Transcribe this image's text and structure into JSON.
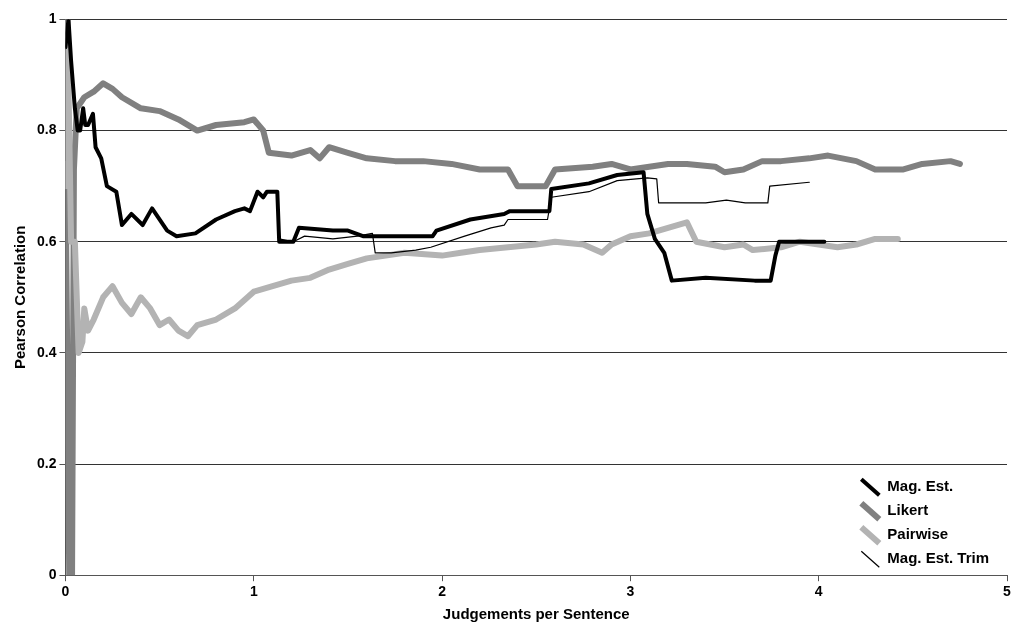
{
  "chart_data": {
    "type": "line",
    "xlabel": "Judgements per Sentence",
    "ylabel": "Pearson Correlation",
    "xlim": [
      0,
      5
    ],
    "xticks": [
      0,
      1,
      2,
      3,
      4,
      5
    ],
    "ylim": [
      0,
      1
    ],
    "yticks": [
      0,
      0.2,
      0.4,
      0.6,
      0.8,
      1
    ],
    "grid": "y",
    "legend": "bottom right",
    "marker": "none",
    "line_style": "solid",
    "series": [
      {
        "name": "Mag. Est.",
        "color": "#000000",
        "x": [
          0,
          0.016,
          0.03,
          0.05,
          0.065,
          0.078,
          0.094,
          0.105,
          0.12,
          0.146,
          0.16,
          0.19,
          0.22,
          0.27,
          0.3,
          0.35,
          0.41,
          0.46,
          0.54,
          0.59,
          0.69,
          0.8,
          0.9,
          0.95,
          0.98,
          1.02,
          1.05,
          1.07,
          1.125,
          1.135,
          1.21,
          1.24,
          1.42,
          1.5,
          1.58,
          1.84,
          1.95,
          1.97,
          2.15,
          2.33,
          2.36,
          2.57,
          2.58,
          2.78,
          2.93,
          3.07,
          3.09,
          3.13,
          3.18,
          3.22,
          3.4,
          3.66,
          3.745,
          3.77,
          3.79,
          4.03
        ],
        "values": [
          0.95,
          1.0,
          0.925,
          0.84,
          0.8,
          0.8,
          0.84,
          0.81,
          0.81,
          0.83,
          0.77,
          0.75,
          0.7,
          0.69,
          0.63,
          0.65,
          0.63,
          0.66,
          0.62,
          0.61,
          0.615,
          0.64,
          0.655,
          0.66,
          0.655,
          0.69,
          0.68,
          0.69,
          0.69,
          0.6,
          0.6,
          0.625,
          0.62,
          0.62,
          0.61,
          0.61,
          0.61,
          0.62,
          0.64,
          0.65,
          0.655,
          0.655,
          0.695,
          0.705,
          0.72,
          0.725,
          0.65,
          0.605,
          0.58,
          0.53,
          0.535,
          0.53,
          0.53,
          0.575,
          0.6,
          0.6
        ]
      },
      {
        "name": "Likert",
        "color": "#808080",
        "x": [
          0,
          0.02,
          0.035,
          0.045,
          0.06,
          0.1,
          0.15,
          0.2,
          0.25,
          0.3,
          0.4,
          0.5,
          0.6,
          0.7,
          0.8,
          0.95,
          1.0,
          1.05,
          1.08,
          1.2,
          1.3,
          1.35,
          1.4,
          1.5,
          1.6,
          1.75,
          1.9,
          2.05,
          2.2,
          2.35,
          2.4,
          2.55,
          2.6,
          2.8,
          2.9,
          3.0,
          3.1,
          3.2,
          3.3,
          3.45,
          3.5,
          3.6,
          3.7,
          3.8,
          3.95,
          4.05,
          4.2,
          4.3,
          4.45,
          4.55,
          4.7,
          4.75
        ],
        "values": [
          0.74,
          0,
          0,
          0.73,
          0.84,
          0.86,
          0.87,
          0.885,
          0.875,
          0.86,
          0.84,
          0.835,
          0.82,
          0.8,
          0.81,
          0.815,
          0.82,
          0.8,
          0.76,
          0.755,
          0.765,
          0.75,
          0.77,
          0.76,
          0.75,
          0.745,
          0.745,
          0.74,
          0.73,
          0.73,
          0.7,
          0.7,
          0.73,
          0.735,
          0.74,
          0.73,
          0.735,
          0.74,
          0.74,
          0.735,
          0.725,
          0.73,
          0.745,
          0.745,
          0.75,
          0.755,
          0.745,
          0.73,
          0.73,
          0.74,
          0.745,
          0.74
        ]
      },
      {
        "name": "Pairwise",
        "color": "#b3b3b3",
        "x": [
          0,
          0.01,
          0.02,
          0.03,
          0.05,
          0.07,
          0.09,
          0.1,
          0.12,
          0.15,
          0.2,
          0.25,
          0.3,
          0.35,
          0.4,
          0.45,
          0.5,
          0.55,
          0.6,
          0.65,
          0.7,
          0.8,
          0.9,
          1.0,
          1.1,
          1.2,
          1.3,
          1.4,
          1.5,
          1.6,
          1.7,
          1.8,
          2.0,
          2.1,
          2.2,
          2.35,
          2.5,
          2.6,
          2.75,
          2.85,
          2.9,
          3.0,
          3.1,
          3.2,
          3.3,
          3.35,
          3.5,
          3.6,
          3.65,
          3.8,
          3.9,
          4.0,
          4.1,
          4.2,
          4.3,
          4.42
        ],
        "values": [
          0.7,
          1.0,
          0.8,
          0.6,
          0.6,
          0.4,
          0.42,
          0.48,
          0.44,
          0.46,
          0.5,
          0.52,
          0.49,
          0.47,
          0.5,
          0.48,
          0.45,
          0.46,
          0.44,
          0.43,
          0.45,
          0.46,
          0.48,
          0.51,
          0.52,
          0.53,
          0.535,
          0.55,
          0.56,
          0.57,
          0.575,
          0.58,
          0.575,
          0.58,
          0.585,
          0.59,
          0.595,
          0.6,
          0.595,
          0.58,
          0.595,
          0.61,
          0.615,
          0.625,
          0.635,
          0.6,
          0.59,
          0.595,
          0.585,
          0.59,
          0.6,
          0.595,
          0.59,
          0.595,
          0.605,
          0.605
        ]
      },
      {
        "name": "Mag. Est. Trim",
        "color": "#000000",
        "x": [
          0,
          0.016,
          0.03,
          0.05,
          0.065,
          0.078,
          0.094,
          0.105,
          0.12,
          0.146,
          0.16,
          0.19,
          0.22,
          0.27,
          0.3,
          0.35,
          0.41,
          0.46,
          0.54,
          0.59,
          0.69,
          0.8,
          0.9,
          0.95,
          0.98,
          1.02,
          1.05,
          1.07,
          1.125,
          1.135,
          1.21,
          1.27,
          1.42,
          1.55,
          1.63,
          1.645,
          1.73,
          1.86,
          1.94,
          2.12,
          2.26,
          2.33,
          2.35,
          2.51,
          2.56,
          2.58,
          2.78,
          2.93,
          3.09,
          3.14,
          3.15,
          3.4,
          3.51,
          3.61,
          3.73,
          3.74,
          3.95
        ],
        "values": [
          0.95,
          1.0,
          0.925,
          0.84,
          0.8,
          0.8,
          0.84,
          0.81,
          0.81,
          0.83,
          0.77,
          0.75,
          0.7,
          0.69,
          0.63,
          0.65,
          0.63,
          0.66,
          0.62,
          0.61,
          0.615,
          0.64,
          0.655,
          0.66,
          0.655,
          0.69,
          0.68,
          0.69,
          0.69,
          0.605,
          0.6,
          0.61,
          0.605,
          0.61,
          0.615,
          0.58,
          0.58,
          0.585,
          0.59,
          0.61,
          0.625,
          0.63,
          0.64,
          0.64,
          0.64,
          0.68,
          0.69,
          0.71,
          0.715,
          0.713,
          0.67,
          0.67,
          0.675,
          0.67,
          0.67,
          0.7,
          0.707
        ]
      }
    ]
  }
}
